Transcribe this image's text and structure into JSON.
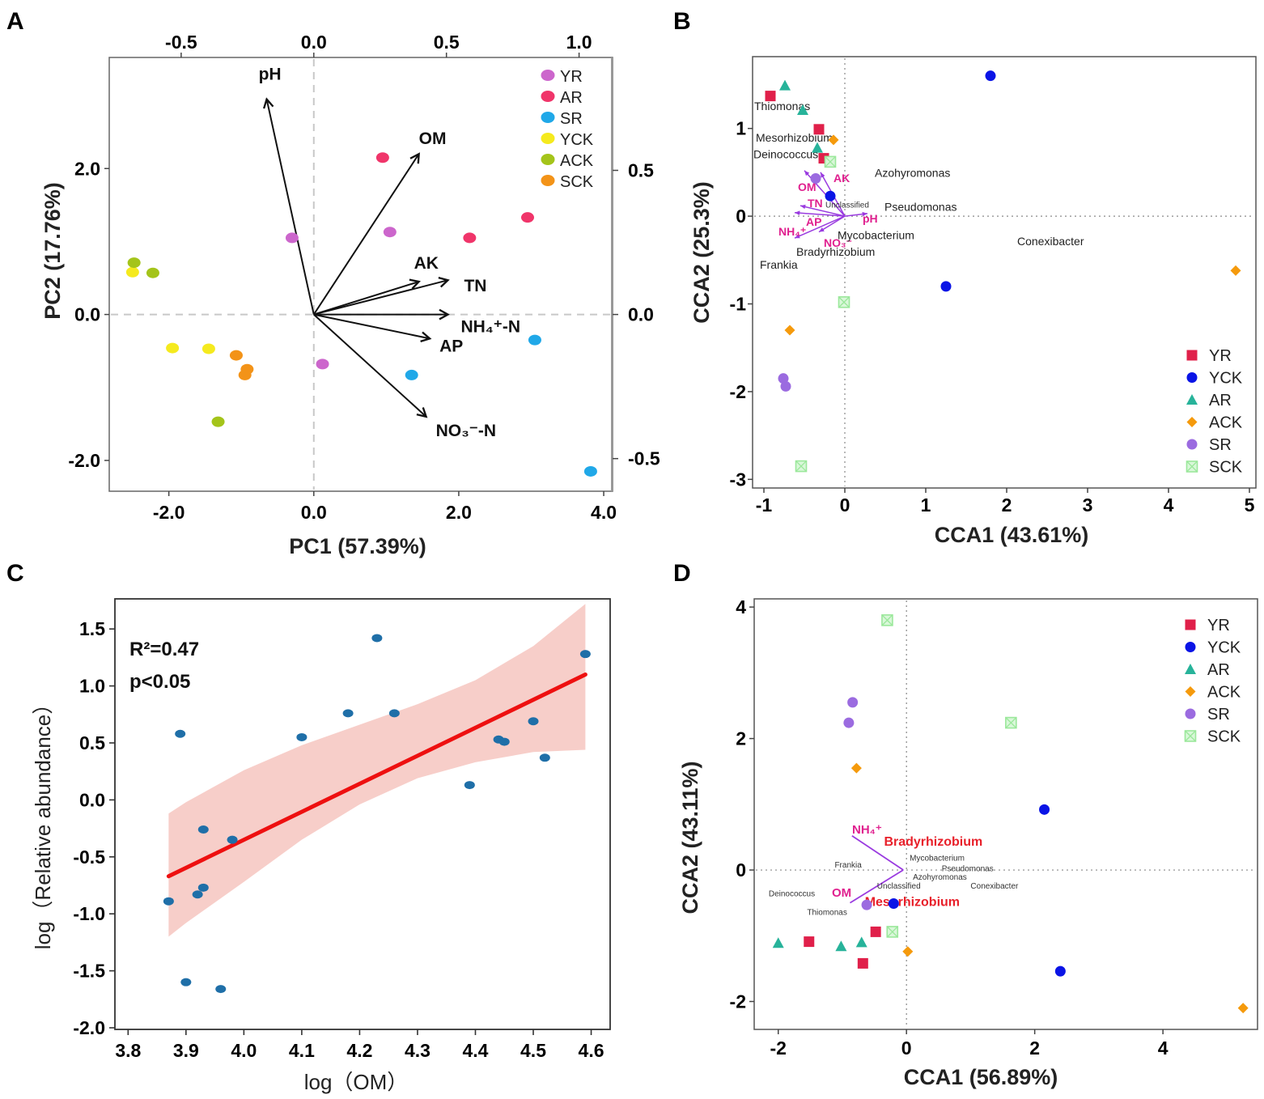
{
  "colors": {
    "YR": "#cc66cc",
    "AR": "#f0356a",
    "SR": "#20a8e8",
    "YCK": "#f5ea1e",
    "ACK": "#a4c41a",
    "SCK": "#f39318",
    "cca_YR": "#e0204a",
    "cca_YCK": "#0a14e6",
    "cca_AR": "#27b39a",
    "cca_ACK": "#f59a0c",
    "cca_SR": "#9b6be0",
    "cca_SCK": "#9be89b",
    "env": "#9a3be0",
    "envText": "#e0208f",
    "fit": "#ee1010",
    "band": "#f6c6c0",
    "pointC": "#1f6fa8"
  },
  "chart_data": [
    {
      "panel": "A",
      "type": "scatter",
      "xlabel": "PC1 (57.39%)",
      "ylabel": "PC2 (17.76%)",
      "xlim": [
        -2.8,
        4.1
      ],
      "ylim": [
        -2.4,
        3.5
      ],
      "xticks": [
        "-2.0",
        "0.0",
        "2.0",
        "4.0"
      ],
      "yticks": [
        "-2.0",
        "0.0",
        "2.0"
      ],
      "topticks": [
        "-0.5",
        "0.0",
        "0.5",
        "1.0"
      ],
      "rightticks": [
        "0.5",
        "0.0",
        "-0.5"
      ],
      "legend": [
        "YR",
        "AR",
        "SR",
        "YCK",
        "ACK",
        "SCK"
      ],
      "series": [
        {
          "name": "YR",
          "points": [
            [
              -0.3,
              1.05
            ],
            [
              1.05,
              1.13
            ],
            [
              0.12,
              -0.68
            ]
          ]
        },
        {
          "name": "AR",
          "points": [
            [
              0.95,
              2.15
            ],
            [
              2.95,
              1.33
            ],
            [
              2.15,
              1.05
            ]
          ]
        },
        {
          "name": "SR",
          "points": [
            [
              3.05,
              -0.35
            ],
            [
              1.35,
              -0.83
            ],
            [
              3.82,
              -2.15
            ]
          ]
        },
        {
          "name": "YCK",
          "points": [
            [
              -1.95,
              -0.46
            ],
            [
              -1.45,
              -0.47
            ],
            [
              -2.5,
              0.58
            ]
          ]
        },
        {
          "name": "ACK",
          "points": [
            [
              -2.48,
              0.71
            ],
            [
              -2.22,
              0.57
            ],
            [
              -1.32,
              -1.47
            ]
          ]
        },
        {
          "name": "SCK",
          "points": [
            [
              -1.07,
              -0.56
            ],
            [
              -0.92,
              -0.75
            ],
            [
              -0.95,
              -0.83
            ]
          ]
        }
      ],
      "vectors": [
        {
          "label": "pH",
          "x": -0.65,
          "y": 2.95
        },
        {
          "label": "OM",
          "x": 1.45,
          "y": 2.2
        },
        {
          "label": "AK",
          "x": 1.45,
          "y": 0.45
        },
        {
          "label": "TN",
          "x": 1.85,
          "y": 0.47
        },
        {
          "label": "NH₄⁺-N",
          "x": 1.85,
          "y": 0.0
        },
        {
          "label": "AP",
          "x": 1.6,
          "y": -0.33
        },
        {
          "label": "NO₃⁻-N",
          "x": 1.55,
          "y": -1.4
        }
      ]
    },
    {
      "panel": "B",
      "type": "scatter",
      "xlabel": "CCA1 (43.61%)",
      "ylabel": "CCA2 (25.3%)",
      "xlim": [
        -1.12,
        5.06
      ],
      "ylim": [
        -3.08,
        1.8
      ],
      "xticks": [
        "-1",
        "0",
        "1",
        "2",
        "3",
        "4",
        "5"
      ],
      "yticks": [
        "1",
        "0",
        "-1",
        "-2",
        "-3"
      ],
      "legend": [
        "YR",
        "YCK",
        "AR",
        "ACK",
        "SR",
        "SCK"
      ],
      "series": [
        {
          "name": "YR",
          "marker": "square",
          "points": [
            [
              -0.92,
              1.37
            ],
            [
              -0.32,
              0.99
            ],
            [
              -0.26,
              0.66
            ]
          ]
        },
        {
          "name": "YCK",
          "marker": "circle",
          "points": [
            [
              1.8,
              1.6
            ],
            [
              -0.18,
              0.23
            ],
            [
              1.25,
              -0.8
            ]
          ]
        },
        {
          "name": "AR",
          "marker": "triangle",
          "points": [
            [
              -0.74,
              1.49
            ],
            [
              -0.52,
              1.21
            ],
            [
              -0.34,
              0.78
            ]
          ]
        },
        {
          "name": "ACK",
          "marker": "diamond",
          "points": [
            [
              -0.14,
              0.87
            ],
            [
              4.83,
              -0.62
            ],
            [
              -0.68,
              -1.3
            ]
          ]
        },
        {
          "name": "SR",
          "marker": "circle",
          "points": [
            [
              -0.36,
              0.43
            ],
            [
              -0.76,
              -1.85
            ],
            [
              -0.73,
              -1.94
            ]
          ]
        },
        {
          "name": "SCK",
          "marker": "xsquare",
          "points": [
            [
              -0.18,
              0.62
            ],
            [
              -0.01,
              -0.98
            ],
            [
              -0.54,
              -2.85
            ]
          ]
        }
      ],
      "species": [
        {
          "label": "Thiomonas",
          "x": -1.12,
          "y": 1.21
        },
        {
          "label": "Mesorhizobium",
          "x": -1.1,
          "y": 0.85
        },
        {
          "label": "Deinococcus",
          "x": -1.13,
          "y": 0.66
        },
        {
          "label": "Azohyromonas",
          "x": 0.37,
          "y": 0.45
        },
        {
          "label": "Unclassified",
          "x": -0.24,
          "y": 0.1
        },
        {
          "label": "Pseudomonas",
          "x": 0.49,
          "y": 0.06
        },
        {
          "label": "Mycobacterium",
          "x": -0.09,
          "y": -0.26
        },
        {
          "label": "Bradyrhizobium",
          "x": -0.6,
          "y": -0.45
        },
        {
          "label": "Conexibacter",
          "x": 2.13,
          "y": -0.33
        },
        {
          "label": "Frankia",
          "x": -1.05,
          "y": -0.6
        }
      ],
      "env": [
        {
          "label": "AK",
          "x": -0.3,
          "y": 0.5
        },
        {
          "label": "OM",
          "x": -0.5,
          "y": 0.52
        },
        {
          "label": "TN",
          "x": -0.55,
          "y": 0.12
        },
        {
          "label": "AP",
          "x": -0.62,
          "y": 0.04
        },
        {
          "label": "NH₄⁺",
          "x": -0.62,
          "y": -0.25
        },
        {
          "label": "NO₃⁻",
          "x": -0.32,
          "y": -0.18
        },
        {
          "label": "pH",
          "x": 0.28,
          "y": 0.03
        }
      ]
    },
    {
      "panel": "C",
      "type": "scatter",
      "xlabel": "log（OM）",
      "ylabel": "log（Relative abundance）",
      "xlim": [
        3.78,
        4.63
      ],
      "ylim": [
        -2.0,
        1.75
      ],
      "xticks": [
        "3.8",
        "3.9",
        "4.0",
        "4.1",
        "4.2",
        "4.3",
        "4.4",
        "4.5",
        "4.6"
      ],
      "yticks": [
        "1.5",
        "1.0",
        "0.5",
        "0.0",
        "-0.5",
        "-1.0",
        "-1.5",
        "-2.0"
      ],
      "annotation": {
        "r2": "R²=0.47",
        "p": "p<0.05"
      },
      "fit": {
        "x0": 3.87,
        "y0": -0.67,
        "x1": 4.59,
        "y1": 1.1
      },
      "band": {
        "x": [
          3.87,
          3.9,
          4.0,
          4.1,
          4.2,
          4.3,
          4.4,
          4.5,
          4.59
        ],
        "upper": [
          -0.12,
          -0.02,
          0.26,
          0.48,
          0.66,
          0.84,
          1.05,
          1.35,
          1.72
        ],
        "lower": [
          -1.2,
          -1.08,
          -0.72,
          -0.35,
          -0.04,
          0.19,
          0.33,
          0.42,
          0.44
        ]
      },
      "points": [
        [
          3.87,
          -0.89
        ],
        [
          3.89,
          0.58
        ],
        [
          3.9,
          -1.6
        ],
        [
          3.92,
          -0.83
        ],
        [
          3.93,
          -0.77
        ],
        [
          3.93,
          -0.26
        ],
        [
          3.96,
          -1.66
        ],
        [
          3.98,
          -0.35
        ],
        [
          4.1,
          0.55
        ],
        [
          4.18,
          0.76
        ],
        [
          4.23,
          1.42
        ],
        [
          4.26,
          0.76
        ],
        [
          4.39,
          0.13
        ],
        [
          4.44,
          0.53
        ],
        [
          4.45,
          0.51
        ],
        [
          4.5,
          0.69
        ],
        [
          4.52,
          0.37
        ],
        [
          4.59,
          1.28
        ]
      ]
    },
    {
      "panel": "D",
      "type": "scatter",
      "xlabel": "CCA1 (56.89%)",
      "ylabel": "CCA2 (43.11%)",
      "xlim": [
        -2.35,
        5.45
      ],
      "ylim": [
        -2.4,
        4.1
      ],
      "xticks": [
        "-2",
        "0",
        "2",
        "4"
      ],
      "yticks": [
        "4",
        "2",
        "0",
        "-2"
      ],
      "legend": [
        "YR",
        "YCK",
        "AR",
        "ACK",
        "SR",
        "SCK"
      ],
      "series": [
        {
          "name": "YR",
          "marker": "square",
          "points": [
            [
              -1.52,
              -1.09
            ],
            [
              -0.68,
              -1.42
            ],
            [
              -0.48,
              -0.94
            ]
          ]
        },
        {
          "name": "YCK",
          "marker": "circle",
          "points": [
            [
              2.15,
              0.92
            ],
            [
              -0.2,
              -0.51
            ],
            [
              2.4,
              -1.54
            ]
          ]
        },
        {
          "name": "AR",
          "marker": "triangle",
          "points": [
            [
              -2.0,
              -1.11
            ],
            [
              -1.02,
              -1.16
            ],
            [
              -0.7,
              -1.1
            ]
          ]
        },
        {
          "name": "ACK",
          "marker": "diamond",
          "points": [
            [
              -0.78,
              1.55
            ],
            [
              0.02,
              -1.24
            ],
            [
              5.25,
              -2.1
            ]
          ]
        },
        {
          "name": "SR",
          "marker": "circle",
          "points": [
            [
              -0.84,
              2.55
            ],
            [
              -0.9,
              2.24
            ],
            [
              -0.62,
              -0.53
            ]
          ]
        },
        {
          "name": "SCK",
          "marker": "xsquare",
          "points": [
            [
              -0.3,
              3.8
            ],
            [
              1.63,
              2.24
            ],
            [
              -0.22,
              -0.94
            ]
          ]
        }
      ],
      "species": [
        {
          "label": "Bradyrhizobium",
          "x": -0.35,
          "y": 0.37,
          "highlight": true
        },
        {
          "label": "Mesorhizobium",
          "x": -0.65,
          "y": -0.55,
          "highlight": true
        },
        {
          "label": "Mycobacterium",
          "x": 0.05,
          "y": 0.14
        },
        {
          "label": "Frankia",
          "x": -1.12,
          "y": 0.04
        },
        {
          "label": "Pseudomonas",
          "x": 0.55,
          "y": -0.02
        },
        {
          "label": "Azohyromonas",
          "x": 0.1,
          "y": -0.15
        },
        {
          "label": "Unclassified",
          "x": -0.46,
          "y": -0.28
        },
        {
          "label": "Conexibacter",
          "x": 1.0,
          "y": -0.28
        },
        {
          "label": "Deinococcus",
          "x": -2.15,
          "y": -0.4
        },
        {
          "label": "Thiomonas",
          "x": -1.55,
          "y": -0.68
        }
      ],
      "env": [
        {
          "label": "NH₄⁺",
          "x": -0.85,
          "y": 0.52
        },
        {
          "label": "OM",
          "x": -0.88,
          "y": -0.5
        }
      ],
      "envOrigin": [
        -0.05,
        0.0
      ]
    }
  ],
  "panel_labels": [
    "A",
    "B",
    "C",
    "D"
  ]
}
